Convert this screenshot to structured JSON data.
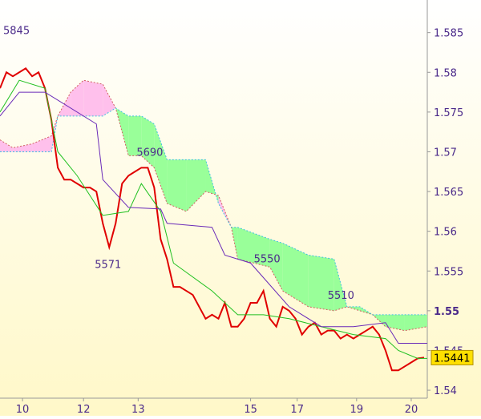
{
  "chart_data": {
    "type": "ichimoku",
    "xlim": [
      0,
      133
    ],
    "ylim": [
      1.539,
      1.5891
    ],
    "xticks": [
      {
        "value": 7,
        "label": "10"
      },
      {
        "value": 26,
        "label": "12"
      },
      {
        "value": 43,
        "label": "13"
      },
      {
        "value": 78,
        "label": "15"
      },
      {
        "value": 92.5,
        "label": "17"
      },
      {
        "value": 111,
        "label": "19"
      },
      {
        "value": 128,
        "label": "20"
      }
    ],
    "yticks": [
      1.585,
      1.58,
      1.575,
      1.57,
      1.565,
      1.56,
      1.555,
      1.55,
      1.545,
      1.54
    ],
    "bold_ytick": 1.55,
    "last_price": 1.5441,
    "series": [
      {
        "name": "price",
        "color": "#e00000",
        "x": [
          0,
          2,
          4,
          6,
          8,
          10,
          12,
          14,
          16,
          18,
          20,
          22,
          24,
          26,
          28,
          30,
          32,
          34,
          36,
          38,
          40,
          42,
          44,
          46,
          48,
          50,
          52,
          54,
          56,
          58,
          60,
          62,
          64,
          66,
          68,
          70,
          72,
          74,
          76,
          78,
          80,
          82,
          84,
          86,
          88,
          90,
          92,
          94,
          96,
          98,
          100,
          102,
          104,
          106,
          108,
          110,
          112,
          114,
          116,
          118,
          120,
          122,
          124,
          126,
          128,
          130,
          132
        ],
        "values": [
          1.578,
          1.58,
          1.5795,
          1.58,
          1.5805,
          1.5795,
          1.58,
          1.578,
          1.574,
          1.568,
          1.5665,
          1.5665,
          1.566,
          1.5655,
          1.5655,
          1.565,
          1.561,
          1.558,
          1.561,
          1.566,
          1.567,
          1.5675,
          1.568,
          1.568,
          1.5655,
          1.559,
          1.5565,
          1.553,
          1.553,
          1.5525,
          1.552,
          1.5505,
          1.549,
          1.5495,
          1.549,
          1.551,
          1.548,
          1.548,
          1.549,
          1.551,
          1.551,
          1.5525,
          1.549,
          1.548,
          1.5505,
          1.55,
          1.549,
          1.547,
          1.548,
          1.5485,
          1.547,
          1.5475,
          1.5475,
          1.5465,
          1.547,
          1.5465,
          1.547,
          1.5475,
          1.548,
          1.547,
          1.545,
          1.5425,
          1.5425,
          1.543,
          1.5435,
          1.544,
          1.5441
        ]
      },
      {
        "name": "tenkan",
        "color": "#20c020",
        "x": [
          0,
          6,
          14,
          18,
          24,
          32,
          40,
          44,
          50,
          54,
          66,
          74,
          82,
          90,
          100,
          110,
          120,
          124,
          130,
          133
        ],
        "values": [
          1.575,
          1.579,
          1.578,
          1.57,
          1.567,
          1.562,
          1.5625,
          1.566,
          1.5625,
          1.556,
          1.5525,
          1.5495,
          1.5495,
          1.549,
          1.548,
          1.547,
          1.5465,
          1.545,
          1.544,
          1.544
        ]
      },
      {
        "name": "kijun",
        "color": "#6a2ab8",
        "x": [
          0,
          6,
          14,
          30,
          32,
          40,
          50,
          52,
          66,
          70,
          78,
          90,
          100,
          110,
          120,
          124,
          133
        ],
        "values": [
          1.5745,
          1.5775,
          1.5775,
          1.5735,
          1.5665,
          1.563,
          1.5628,
          1.561,
          1.5605,
          1.557,
          1.556,
          1.5505,
          1.548,
          1.548,
          1.5485,
          1.5459,
          1.5459
        ]
      }
    ],
    "cloud": {
      "x": [
        0,
        4,
        10,
        16,
        18,
        22,
        26,
        32,
        36,
        40,
        44,
        48,
        52,
        58,
        64,
        68,
        72,
        74,
        84,
        88,
        96,
        104,
        108,
        112,
        116,
        120,
        126,
        133
      ],
      "span_a": [
        1.5715,
        1.5705,
        1.571,
        1.572,
        1.5745,
        1.5775,
        1.579,
        1.5785,
        1.5755,
        1.5695,
        1.5695,
        1.568,
        1.5635,
        1.5625,
        1.565,
        1.5645,
        1.5605,
        1.5565,
        1.5555,
        1.5525,
        1.5505,
        1.55,
        1.5505,
        1.55,
        1.5495,
        1.548,
        1.5475,
        1.548
      ],
      "span_b": [
        1.57,
        1.57,
        1.57,
        1.57,
        1.5745,
        1.5745,
        1.5745,
        1.5745,
        1.5755,
        1.5745,
        1.5745,
        1.5735,
        1.569,
        1.569,
        1.569,
        1.5635,
        1.5605,
        1.5605,
        1.559,
        1.5585,
        1.557,
        1.5565,
        1.5505,
        1.5505,
        1.5495,
        1.5495,
        1.5495,
        1.5495
      ],
      "up_color": "#99ff99",
      "down_color": "#ffc0ec",
      "a_color": "#d06060",
      "b_color": "#40c0e0"
    },
    "annotations": [
      {
        "text": "5845",
        "x": 1,
        "y": 1.5853
      },
      {
        "text": "5690",
        "x": 42.5,
        "y": 1.57
      },
      {
        "text": "5571",
        "x": 29.5,
        "y": 1.5559
      },
      {
        "text": "5550",
        "x": 79,
        "y": 1.5566
      },
      {
        "text": "5510",
        "x": 102,
        "y": 1.552
      }
    ]
  }
}
